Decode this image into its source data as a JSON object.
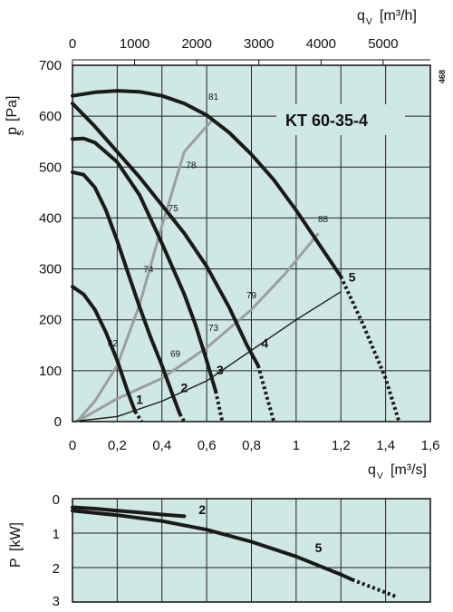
{
  "chart_data": [
    {
      "type": "line",
      "title": "KT 60-35-4",
      "code": "468",
      "colors": {
        "background": "#cfe8e4",
        "grid": "#222222",
        "fan_curve": "#1a1a1a",
        "efficiency_curve": "#9aa0a0",
        "system_curve": "#1a1a1a"
      },
      "x_axis": {
        "label": "q",
        "label_sub": "V",
        "unit": "[m³/s]",
        "range": [
          0,
          1.6
        ],
        "ticks": [
          0,
          0.2,
          0.4,
          0.6,
          0.8,
          1,
          1.2,
          1.4,
          1.6
        ],
        "tick_labels": [
          "0",
          "0,2",
          "0,4",
          "0,6",
          "0,8",
          "1",
          "1,2",
          "1,4",
          "1,6"
        ]
      },
      "x_axis_top": {
        "label": "q",
        "label_sub": "V",
        "unit": "[m³/h]",
        "range": [
          0,
          5760
        ],
        "ticks": [
          0,
          1000,
          2000,
          3000,
          4000,
          5000
        ],
        "tick_labels": [
          "0",
          "1000",
          "2000",
          "3000",
          "4000",
          "5000"
        ]
      },
      "y_axis": {
        "label": "p",
        "label_sub": "S",
        "unit": "[Pa]",
        "range": [
          0,
          700
        ],
        "ticks": [
          0,
          100,
          200,
          300,
          400,
          500,
          600,
          700
        ],
        "tick_labels": [
          "0",
          "100",
          "200",
          "300",
          "400",
          "500",
          "600",
          "700"
        ]
      },
      "grid": true,
      "series": [
        {
          "name": "1",
          "label_at": [
            0.3,
            35
          ],
          "points": [
            [
              0,
              265
            ],
            [
              0.05,
              250
            ],
            [
              0.1,
              220
            ],
            [
              0.15,
              175
            ],
            [
              0.2,
              120
            ],
            [
              0.25,
              55
            ],
            [
              0.28,
              20
            ]
          ],
          "dashed": [
            [
              0.28,
              20
            ],
            [
              0.31,
              0
            ]
          ]
        },
        {
          "name": "2",
          "label_at": [
            0.5,
            58
          ],
          "points": [
            [
              0,
              490
            ],
            [
              0.05,
              485
            ],
            [
              0.1,
              460
            ],
            [
              0.15,
              415
            ],
            [
              0.2,
              355
            ],
            [
              0.25,
              290
            ],
            [
              0.3,
              225
            ],
            [
              0.35,
              165
            ],
            [
              0.4,
              110
            ],
            [
              0.45,
              50
            ],
            [
              0.48,
              15
            ]
          ],
          "dashed": [
            [
              0.48,
              15
            ],
            [
              0.5,
              0
            ]
          ]
        },
        {
          "name": "3",
          "label_at": [
            0.66,
            93
          ],
          "points": [
            [
              0,
              555
            ],
            [
              0.05,
              556
            ],
            [
              0.1,
              548
            ],
            [
              0.2,
              510
            ],
            [
              0.3,
              445
            ],
            [
              0.4,
              350
            ],
            [
              0.5,
              250
            ],
            [
              0.55,
              190
            ],
            [
              0.6,
              120
            ],
            [
              0.64,
              60
            ]
          ],
          "dashed": [
            [
              0.64,
              60
            ],
            [
              0.67,
              0
            ]
          ]
        },
        {
          "name": "4",
          "label_at": [
            0.86,
            145
          ],
          "points": [
            [
              0,
              625
            ],
            [
              0.1,
              580
            ],
            [
              0.2,
              530
            ],
            [
              0.3,
              480
            ],
            [
              0.4,
              425
            ],
            [
              0.5,
              370
            ],
            [
              0.6,
              305
            ],
            [
              0.7,
              225
            ],
            [
              0.78,
              150
            ],
            [
              0.83,
              110
            ]
          ],
          "dashed": [
            [
              0.83,
              110
            ],
            [
              0.9,
              0
            ]
          ]
        },
        {
          "name": "5",
          "label_at": [
            1.25,
            275
          ],
          "points": [
            [
              0,
              640
            ],
            [
              0.1,
              647
            ],
            [
              0.2,
              650
            ],
            [
              0.3,
              648
            ],
            [
              0.4,
              640
            ],
            [
              0.5,
              625
            ],
            [
              0.6,
              602
            ],
            [
              0.7,
              568
            ],
            [
              0.8,
              525
            ],
            [
              0.9,
              475
            ],
            [
              1.0,
              415
            ],
            [
              1.1,
              350
            ],
            [
              1.2,
              285
            ]
          ],
          "dashed": [
            [
              1.2,
              285
            ],
            [
              1.3,
              190
            ],
            [
              1.4,
              85
            ],
            [
              1.46,
              0
            ]
          ]
        }
      ],
      "efficiency_curves": [
        {
          "points": [
            [
              0.02,
              0
            ],
            [
              0.1,
              40
            ],
            [
              0.2,
              110
            ],
            [
              0.3,
              230
            ],
            [
              0.4,
              385
            ],
            [
              0.5,
              530
            ],
            [
              0.62,
              590
            ]
          ]
        },
        {
          "points": [
            [
              0.02,
              0
            ],
            [
              0.2,
              45
            ],
            [
              0.4,
              85
            ],
            [
              0.6,
              145
            ],
            [
              0.8,
              220
            ],
            [
              0.95,
              290
            ],
            [
              1.1,
              370
            ]
          ]
        }
      ],
      "efficiency_labels": [
        {
          "text": "81",
          "at": [
            0.63,
            632
          ]
        },
        {
          "text": "78",
          "at": [
            0.53,
            498
          ]
        },
        {
          "text": "75",
          "at": [
            0.45,
            413
          ]
        },
        {
          "text": "74",
          "at": [
            0.34,
            293
          ]
        },
        {
          "text": "62",
          "at": [
            0.18,
            148
          ]
        },
        {
          "text": "69",
          "at": [
            0.46,
            127
          ]
        },
        {
          "text": "73",
          "at": [
            0.63,
            178
          ]
        },
        {
          "text": "79",
          "at": [
            0.8,
            242
          ]
        },
        {
          "text": "88",
          "at": [
            1.12,
            392
          ]
        }
      ],
      "system_curve": {
        "points": [
          [
            0,
            0
          ],
          [
            0.2,
            10
          ],
          [
            0.4,
            40
          ],
          [
            0.6,
            80
          ],
          [
            0.8,
            140
          ],
          [
            1.0,
            200
          ],
          [
            1.2,
            255
          ]
        ]
      }
    },
    {
      "type": "line",
      "x_range": [
        0,
        1.6
      ],
      "y_axis": {
        "label": "P",
        "unit": "[kW]",
        "range": [
          0,
          3
        ],
        "inverted": true,
        "ticks": [
          0,
          1,
          2,
          3
        ],
        "tick_labels": [
          "0",
          "1",
          "2",
          "3"
        ]
      },
      "grid": true,
      "series": [
        {
          "name": "2",
          "label_at": [
            0.58,
            0.45
          ],
          "points": [
            [
              0,
              0.25
            ],
            [
              0.1,
              0.29
            ],
            [
              0.2,
              0.35
            ],
            [
              0.3,
              0.4
            ],
            [
              0.4,
              0.46
            ],
            [
              0.5,
              0.51
            ]
          ]
        },
        {
          "name": "5",
          "label_at": [
            1.1,
            1.55
          ],
          "points": [
            [
              0,
              0.35
            ],
            [
              0.2,
              0.48
            ],
            [
              0.4,
              0.65
            ],
            [
              0.6,
              0.9
            ],
            [
              0.8,
              1.25
            ],
            [
              1.0,
              1.68
            ],
            [
              1.2,
              2.2
            ],
            [
              1.25,
              2.35
            ]
          ],
          "dashed": [
            [
              1.25,
              2.35
            ],
            [
              1.35,
              2.6
            ],
            [
              1.45,
              2.85
            ]
          ]
        }
      ]
    }
  ]
}
